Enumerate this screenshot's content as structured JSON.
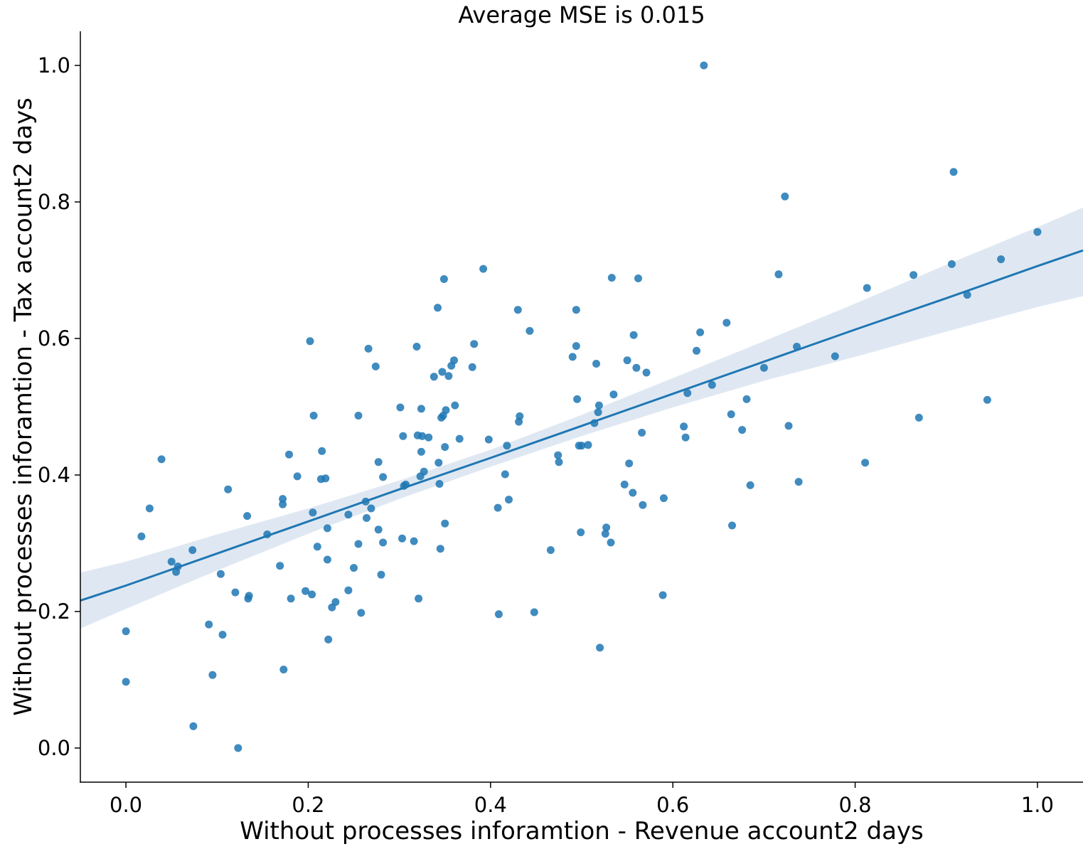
{
  "chart_data": {
    "type": "scatter",
    "title": "Average MSE is 0.015",
    "xlabel": "Without processes inforamtion - Revenue account2 days",
    "ylabel": "Without processes inforamtion - Tax account2 days",
    "xlim": [
      -0.05,
      1.05
    ],
    "ylim": [
      -0.05,
      1.05
    ],
    "xticks": [
      "0.0",
      "0.2",
      "0.4",
      "0.6",
      "0.8",
      "1.0"
    ],
    "yticks": [
      "0.0",
      "0.2",
      "0.4",
      "0.6",
      "0.8",
      "1.0"
    ],
    "grid": false,
    "point_color": "#1f77b4",
    "line_color": "#1f77b4",
    "band_color": "#dbe6f1",
    "regression": {
      "x": [
        -0.05,
        0.0,
        0.1,
        0.2,
        0.3,
        0.4,
        0.5,
        0.6,
        0.7,
        0.8,
        0.9,
        1.0,
        1.05
      ],
      "y": [
        0.216,
        0.238,
        0.285,
        0.332,
        0.379,
        0.425,
        0.472,
        0.519,
        0.566,
        0.613,
        0.659,
        0.706,
        0.729
      ],
      "lower": [
        0.175,
        0.204,
        0.26,
        0.314,
        0.365,
        0.412,
        0.457,
        0.499,
        0.538,
        0.573,
        0.61,
        0.646,
        0.662
      ],
      "upper": [
        0.257,
        0.273,
        0.313,
        0.351,
        0.392,
        0.437,
        0.488,
        0.542,
        0.596,
        0.651,
        0.708,
        0.763,
        0.792
      ]
    },
    "points": [
      [
        0.0,
        0.171
      ],
      [
        0.0,
        0.097
      ],
      [
        0.017,
        0.31
      ],
      [
        0.026,
        0.351
      ],
      [
        0.039,
        0.423
      ],
      [
        0.05,
        0.273
      ],
      [
        0.055,
        0.258
      ],
      [
        0.057,
        0.266
      ],
      [
        0.073,
        0.29
      ],
      [
        0.074,
        0.032
      ],
      [
        0.091,
        0.181
      ],
      [
        0.095,
        0.107
      ],
      [
        0.104,
        0.255
      ],
      [
        0.106,
        0.166
      ],
      [
        0.112,
        0.379
      ],
      [
        0.12,
        0.228
      ],
      [
        0.123,
        0.0
      ],
      [
        0.133,
        0.34
      ],
      [
        0.134,
        0.219
      ],
      [
        0.135,
        0.223
      ],
      [
        0.155,
        0.313
      ],
      [
        0.169,
        0.267
      ],
      [
        0.172,
        0.365
      ],
      [
        0.172,
        0.357
      ],
      [
        0.173,
        0.115
      ],
      [
        0.179,
        0.43
      ],
      [
        0.181,
        0.219
      ],
      [
        0.188,
        0.398
      ],
      [
        0.197,
        0.23
      ],
      [
        0.202,
        0.596
      ],
      [
        0.204,
        0.225
      ],
      [
        0.205,
        0.345
      ],
      [
        0.206,
        0.487
      ],
      [
        0.21,
        0.295
      ],
      [
        0.214,
        0.394
      ],
      [
        0.215,
        0.435
      ],
      [
        0.219,
        0.395
      ],
      [
        0.221,
        0.322
      ],
      [
        0.221,
        0.276
      ],
      [
        0.222,
        0.159
      ],
      [
        0.226,
        0.206
      ],
      [
        0.23,
        0.214
      ],
      [
        0.244,
        0.231
      ],
      [
        0.244,
        0.342
      ],
      [
        0.25,
        0.264
      ],
      [
        0.255,
        0.299
      ],
      [
        0.255,
        0.487
      ],
      [
        0.258,
        0.198
      ],
      [
        0.263,
        0.361
      ],
      [
        0.264,
        0.337
      ],
      [
        0.266,
        0.585
      ],
      [
        0.269,
        0.351
      ],
      [
        0.274,
        0.559
      ],
      [
        0.277,
        0.419
      ],
      [
        0.277,
        0.32
      ],
      [
        0.28,
        0.254
      ],
      [
        0.282,
        0.397
      ],
      [
        0.282,
        0.301
      ],
      [
        0.301,
        0.499
      ],
      [
        0.303,
        0.307
      ],
      [
        0.304,
        0.457
      ],
      [
        0.305,
        0.384
      ],
      [
        0.307,
        0.386
      ],
      [
        0.316,
        0.303
      ],
      [
        0.319,
        0.588
      ],
      [
        0.32,
        0.458
      ],
      [
        0.321,
        0.219
      ],
      [
        0.323,
        0.398
      ],
      [
        0.324,
        0.497
      ],
      [
        0.324,
        0.434
      ],
      [
        0.325,
        0.457
      ],
      [
        0.327,
        0.405
      ],
      [
        0.332,
        0.455
      ],
      [
        0.338,
        0.544
      ],
      [
        0.342,
        0.645
      ],
      [
        0.343,
        0.418
      ],
      [
        0.344,
        0.387
      ],
      [
        0.345,
        0.292
      ],
      [
        0.346,
        0.484
      ],
      [
        0.347,
        0.551
      ],
      [
        0.348,
        0.487
      ],
      [
        0.349,
        0.687
      ],
      [
        0.35,
        0.329
      ],
      [
        0.35,
        0.441
      ],
      [
        0.351,
        0.495
      ],
      [
        0.354,
        0.545
      ],
      [
        0.357,
        0.56
      ],
      [
        0.36,
        0.568
      ],
      [
        0.361,
        0.502
      ],
      [
        0.366,
        0.453
      ],
      [
        0.38,
        0.558
      ],
      [
        0.382,
        0.592
      ],
      [
        0.392,
        0.702
      ],
      [
        0.398,
        0.452
      ],
      [
        0.408,
        0.352
      ],
      [
        0.409,
        0.196
      ],
      [
        0.416,
        0.401
      ],
      [
        0.418,
        0.443
      ],
      [
        0.42,
        0.364
      ],
      [
        0.43,
        0.642
      ],
      [
        0.431,
        0.478
      ],
      [
        0.432,
        0.486
      ],
      [
        0.443,
        0.611
      ],
      [
        0.448,
        0.199
      ],
      [
        0.466,
        0.29
      ],
      [
        0.474,
        0.429
      ],
      [
        0.475,
        0.419
      ],
      [
        0.49,
        0.573
      ],
      [
        0.494,
        0.589
      ],
      [
        0.494,
        0.642
      ],
      [
        0.495,
        0.511
      ],
      [
        0.497,
        0.443
      ],
      [
        0.499,
        0.316
      ],
      [
        0.5,
        0.443
      ],
      [
        0.507,
        0.444
      ],
      [
        0.514,
        0.476
      ],
      [
        0.516,
        0.563
      ],
      [
        0.518,
        0.492
      ],
      [
        0.519,
        0.502
      ],
      [
        0.52,
        0.147
      ],
      [
        0.526,
        0.314
      ],
      [
        0.527,
        0.323
      ],
      [
        0.532,
        0.301
      ],
      [
        0.533,
        0.689
      ],
      [
        0.535,
        0.518
      ],
      [
        0.547,
        0.386
      ],
      [
        0.55,
        0.568
      ],
      [
        0.552,
        0.417
      ],
      [
        0.556,
        0.374
      ],
      [
        0.557,
        0.605
      ],
      [
        0.56,
        0.557
      ],
      [
        0.562,
        0.688
      ],
      [
        0.566,
        0.462
      ],
      [
        0.567,
        0.356
      ],
      [
        0.571,
        0.55
      ],
      [
        0.589,
        0.224
      ],
      [
        0.59,
        0.366
      ],
      [
        0.612,
        0.471
      ],
      [
        0.614,
        0.455
      ],
      [
        0.616,
        0.52
      ],
      [
        0.626,
        0.582
      ],
      [
        0.63,
        0.609
      ],
      [
        0.634,
        1.0
      ],
      [
        0.643,
        0.532
      ],
      [
        0.659,
        0.623
      ],
      [
        0.664,
        0.489
      ],
      [
        0.665,
        0.326
      ],
      [
        0.676,
        0.466
      ],
      [
        0.681,
        0.511
      ],
      [
        0.685,
        0.385
      ],
      [
        0.7,
        0.557
      ],
      [
        0.716,
        0.694
      ],
      [
        0.723,
        0.808
      ],
      [
        0.727,
        0.472
      ],
      [
        0.736,
        0.588
      ],
      [
        0.738,
        0.39
      ],
      [
        0.778,
        0.574
      ],
      [
        0.811,
        0.418
      ],
      [
        0.813,
        0.674
      ],
      [
        0.864,
        0.693
      ],
      [
        0.87,
        0.484
      ],
      [
        0.906,
        0.709
      ],
      [
        0.908,
        0.844
      ],
      [
        0.923,
        0.664
      ],
      [
        0.945,
        0.51
      ],
      [
        0.96,
        0.716
      ],
      [
        1.0,
        0.756
      ]
    ]
  }
}
